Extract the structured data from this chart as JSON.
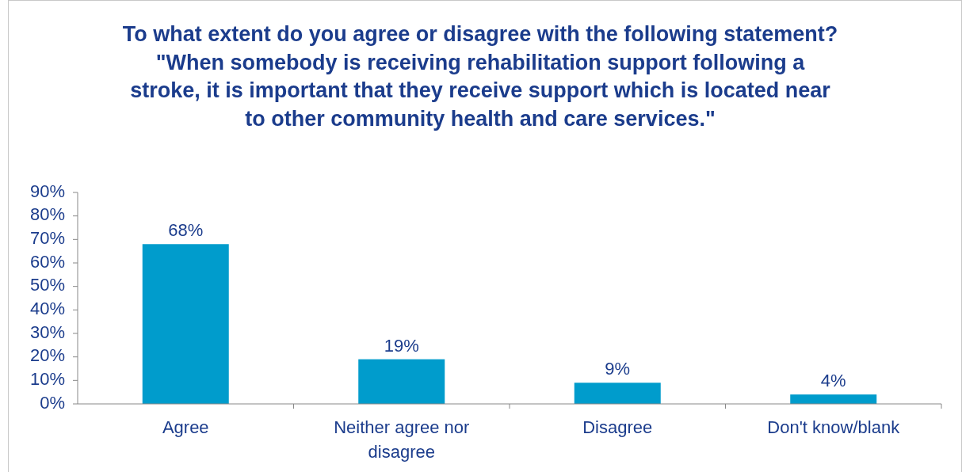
{
  "chart_data": {
    "type": "bar",
    "title": "To what extent do you agree or disagree with the following statement? \"When somebody is receiving rehabilitation support following a stroke, it is important that they receive support which is located near to other community health and care services.\"",
    "categories": [
      "Agree",
      "Neither agree nor disagree",
      "Disagree",
      "Don't know/blank"
    ],
    "values": [
      68,
      19,
      9,
      4
    ],
    "value_labels": [
      "68%",
      "19%",
      "9%",
      "4%"
    ],
    "color": "#009ccc",
    "ylim": [
      0,
      90
    ],
    "yticks": [
      {
        "value": 0,
        "label": "0%"
      },
      {
        "value": 10,
        "label": "10%"
      },
      {
        "value": 20,
        "label": "20%"
      },
      {
        "value": 30,
        "label": "30%"
      },
      {
        "value": 40,
        "label": "40%"
      },
      {
        "value": 50,
        "label": "50%"
      },
      {
        "value": 60,
        "label": "60%"
      },
      {
        "value": 70,
        "label": "70%"
      },
      {
        "value": 80,
        "label": "80%"
      },
      {
        "value": 90,
        "label": "90%"
      }
    ],
    "grid": false
  }
}
